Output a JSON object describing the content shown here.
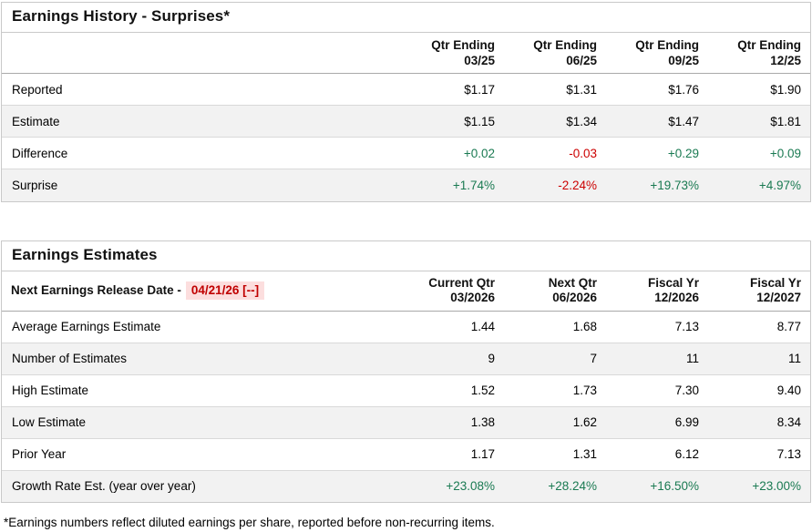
{
  "colors": {
    "positive": "#1a7a52",
    "negative": "#cc0000",
    "release_date_text": "#c00000",
    "release_date_bg": "#fcdede",
    "alt_row_bg": "#f2f2f2",
    "border": "#c9c9c9"
  },
  "earnings_history": {
    "title": "Earnings History - Surprises*",
    "columns": [
      {
        "line1": "Qtr Ending",
        "line2": "03/25"
      },
      {
        "line1": "Qtr Ending",
        "line2": "06/25"
      },
      {
        "line1": "Qtr Ending",
        "line2": "09/25"
      },
      {
        "line1": "Qtr Ending",
        "line2": "12/25"
      }
    ],
    "rows": [
      {
        "label": "Reported",
        "values": [
          "$1.17",
          "$1.31",
          "$1.76",
          "$1.90"
        ],
        "tones": [
          "neu",
          "neu",
          "neu",
          "neu"
        ]
      },
      {
        "label": "Estimate",
        "values": [
          "$1.15",
          "$1.34",
          "$1.47",
          "$1.81"
        ],
        "tones": [
          "neu",
          "neu",
          "neu",
          "neu"
        ]
      },
      {
        "label": "Difference",
        "values": [
          "+0.02",
          "-0.03",
          "+0.29",
          "+0.09"
        ],
        "tones": [
          "pos",
          "neg",
          "pos",
          "pos"
        ]
      },
      {
        "label": "Surprise",
        "values": [
          "+1.74%",
          "-2.24%",
          "+19.73%",
          "+4.97%"
        ],
        "tones": [
          "pos",
          "neg",
          "pos",
          "pos"
        ]
      }
    ]
  },
  "earnings_estimates": {
    "title": "Earnings Estimates",
    "release_date_label": "Next Earnings Release Date -",
    "release_date_value": "04/21/26 [--]",
    "columns": [
      {
        "line1": "Current Qtr",
        "line2": "03/2026"
      },
      {
        "line1": "Next Qtr",
        "line2": "06/2026"
      },
      {
        "line1": "Fiscal Yr",
        "line2": "12/2026"
      },
      {
        "line1": "Fiscal Yr",
        "line2": "12/2027"
      }
    ],
    "rows": [
      {
        "label": "Average Earnings Estimate",
        "values": [
          "1.44",
          "1.68",
          "7.13",
          "8.77"
        ],
        "tones": [
          "neu",
          "neu",
          "neu",
          "neu"
        ]
      },
      {
        "label": "Number of Estimates",
        "values": [
          "9",
          "7",
          "11",
          "11"
        ],
        "tones": [
          "neu",
          "neu",
          "neu",
          "neu"
        ]
      },
      {
        "label": "High Estimate",
        "values": [
          "1.52",
          "1.73",
          "7.30",
          "9.40"
        ],
        "tones": [
          "neu",
          "neu",
          "neu",
          "neu"
        ]
      },
      {
        "label": "Low Estimate",
        "values": [
          "1.38",
          "1.62",
          "6.99",
          "8.34"
        ],
        "tones": [
          "neu",
          "neu",
          "neu",
          "neu"
        ]
      },
      {
        "label": "Prior Year",
        "values": [
          "1.17",
          "1.31",
          "6.12",
          "7.13"
        ],
        "tones": [
          "neu",
          "neu",
          "neu",
          "neu"
        ]
      },
      {
        "label": "Growth Rate Est. (year over year)",
        "values": [
          "+23.08%",
          "+28.24%",
          "+16.50%",
          "+23.00%"
        ],
        "tones": [
          "pos",
          "pos",
          "pos",
          "pos"
        ]
      }
    ]
  },
  "footnote": "*Earnings numbers reflect diluted earnings per share, reported before non-recurring items."
}
